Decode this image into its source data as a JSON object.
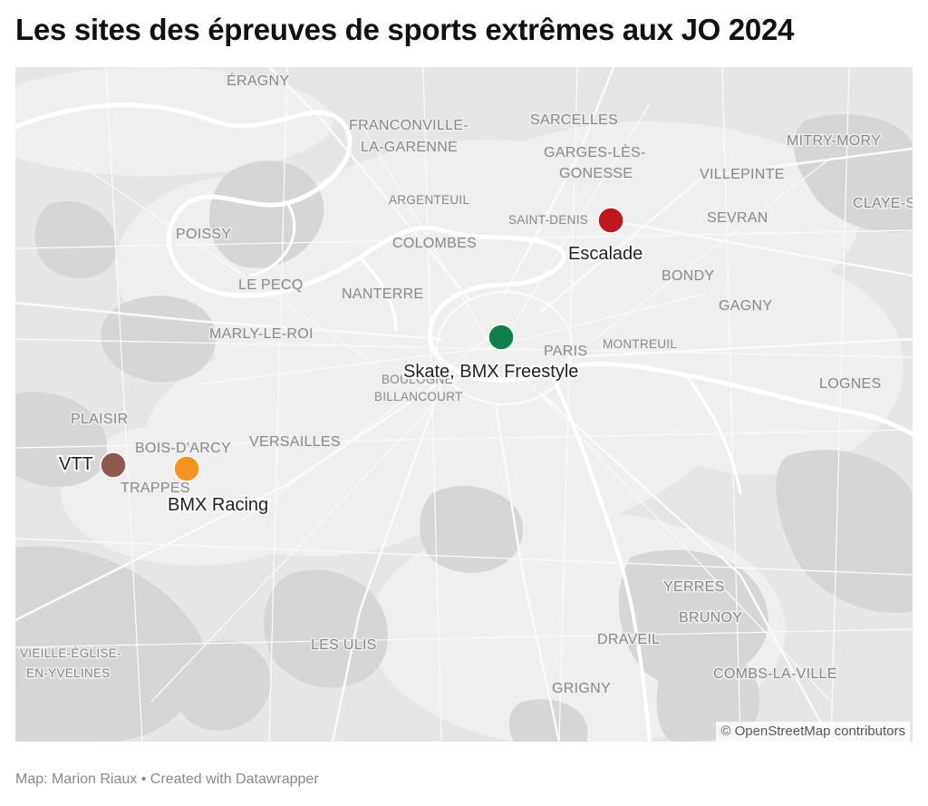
{
  "title": "Les sites des épreuves de sports extrêmes aux JO 2024",
  "footer": {
    "source": "Map: Marion Riaux",
    "separator": " • ",
    "credit": "Created with Datawrapper"
  },
  "map": {
    "attribution": "© OpenStreetMap contributors",
    "colors": {
      "land": "#e6e6e6",
      "urban": "#f0f0f0",
      "forest": "#d7d7d7",
      "water": "#ffffff",
      "roads": "#ffffff",
      "label": "#8a8a8a"
    },
    "places": [
      {
        "id": "eragny",
        "name": "ÉRAGNY"
      },
      {
        "id": "franconville",
        "name": "FRANCONVILLE-"
      },
      {
        "id": "lagarenne",
        "name": "LA-GARENNE"
      },
      {
        "id": "sarcelles",
        "name": "SARCELLES"
      },
      {
        "id": "garges1",
        "name": "GARGES-LÈS-"
      },
      {
        "id": "garges2",
        "name": "GONESSE"
      },
      {
        "id": "mitry",
        "name": "MITRY-MORY"
      },
      {
        "id": "villepinte",
        "name": "VILLEPINTE"
      },
      {
        "id": "claye",
        "name": "CLAYE-S"
      },
      {
        "id": "argenteuil",
        "name": "ARGENTEUIL",
        "small": true
      },
      {
        "id": "saintdenis",
        "name": "SAINT-DENIS",
        "small": true
      },
      {
        "id": "sevran",
        "name": "SEVRAN"
      },
      {
        "id": "poissy",
        "name": "POISSY"
      },
      {
        "id": "colombes",
        "name": "COLOMBES"
      },
      {
        "id": "bondy",
        "name": "BONDY"
      },
      {
        "id": "lepecq",
        "name": "LE PECQ"
      },
      {
        "id": "nanterre",
        "name": "NANTERRE"
      },
      {
        "id": "gagny",
        "name": "GAGNY"
      },
      {
        "id": "marly",
        "name": "MARLY-LE-ROI"
      },
      {
        "id": "paris",
        "name": "PARIS"
      },
      {
        "id": "montreuil",
        "name": "MONTREUIL",
        "small": true
      },
      {
        "id": "boulogne",
        "name": "BOULOGNE",
        "small": true
      },
      {
        "id": "billancourt",
        "name": "BILLANCOURT",
        "small": true
      },
      {
        "id": "lognes",
        "name": "LOGNES"
      },
      {
        "id": "plaisir",
        "name": "PLAISIR"
      },
      {
        "id": "boisdarcy",
        "name": "BOIS-D'ARCY"
      },
      {
        "id": "versailles",
        "name": "VERSAILLES"
      },
      {
        "id": "trappes",
        "name": "TRAPPES"
      },
      {
        "id": "yerres",
        "name": "YERRES"
      },
      {
        "id": "brunoy",
        "name": "BRUNOY"
      },
      {
        "id": "draveil",
        "name": "DRAVEIL"
      },
      {
        "id": "lesulis",
        "name": "LES ULIS"
      },
      {
        "id": "vieille1",
        "name": "VIEILLE-ÉGLISE-",
        "small": true
      },
      {
        "id": "vieille2",
        "name": "EN-YVELINES",
        "small": true
      },
      {
        "id": "combs",
        "name": "COMBS-LA-VILLE"
      },
      {
        "id": "grigny",
        "name": "GRIGNY"
      }
    ],
    "markers": [
      {
        "id": "escalade",
        "label": "Escalade",
        "color": "#c0171d"
      },
      {
        "id": "skate",
        "label": "Skate, BMX Freestyle",
        "color": "#0f7f4c"
      },
      {
        "id": "vtt",
        "label": "VTT",
        "color": "#8c5a4e"
      },
      {
        "id": "bmx-racing",
        "label": "BMX Racing",
        "color": "#f7921e"
      }
    ]
  }
}
